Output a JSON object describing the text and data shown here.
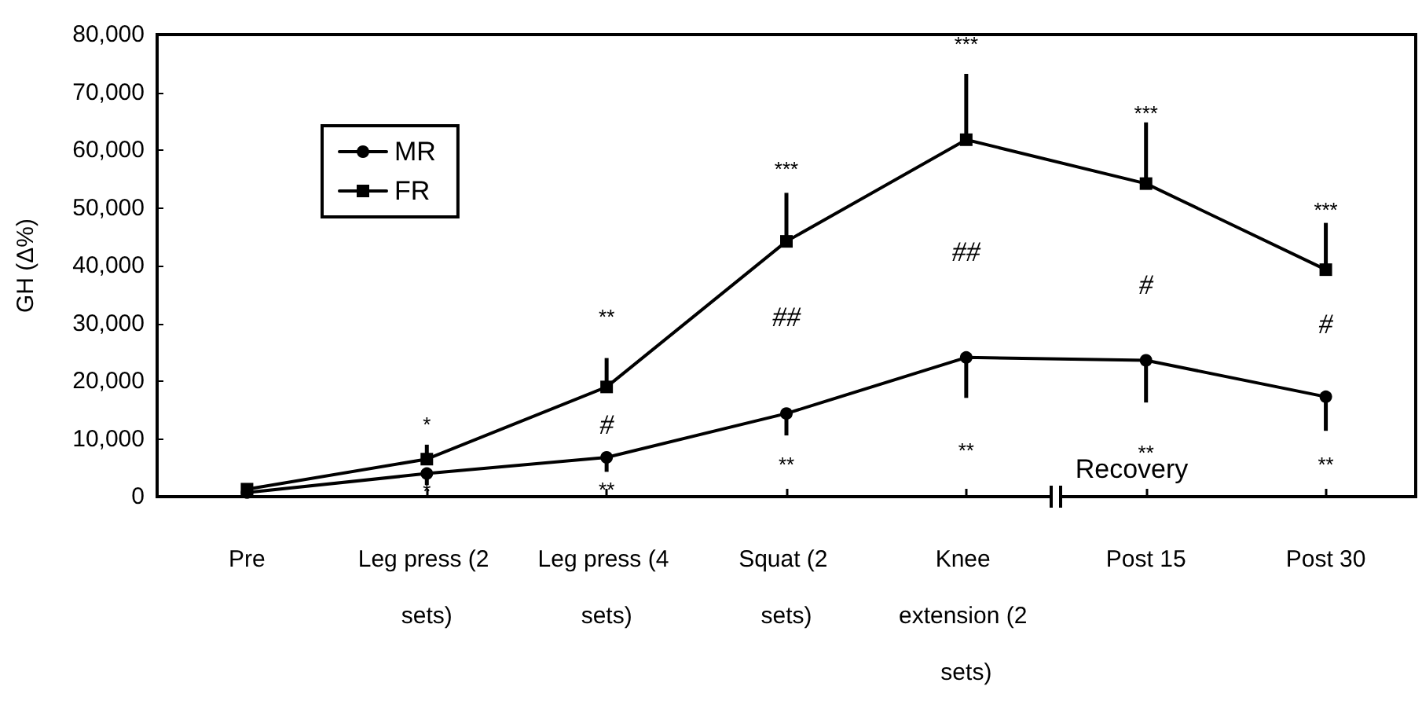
{
  "chart_data": {
    "type": "line",
    "ylabel": "GH (Δ%)",
    "categories": [
      "Pre",
      "Leg press (2 sets)",
      "Leg press (4 sets)",
      "Squat (2 sets)",
      "Knee extension (2 sets)",
      "Post 15",
      "Post 30"
    ],
    "series": [
      {
        "name": "MR",
        "color": "#000000",
        "marker": "circle",
        "values": [
          700,
          4000,
          6800,
          14400,
          24100,
          23600,
          17300
        ],
        "errors": [
          null,
          [
            2000,
            4000
          ],
          [
            4300,
            6800
          ],
          [
            10600,
            14400
          ],
          [
            17100,
            24100
          ],
          [
            16300,
            23600
          ],
          [
            11400,
            17300
          ]
        ]
      },
      {
        "name": "FR",
        "color": "#000000",
        "marker": "square",
        "values": [
          1300,
          6500,
          19000,
          44200,
          61800,
          54200,
          39300
        ],
        "errors": [
          null,
          [
            6500,
            9000
          ],
          [
            19000,
            24000
          ],
          [
            44200,
            52600
          ],
          [
            61800,
            73200
          ],
          [
            54200,
            64800
          ],
          [
            39300,
            47400
          ]
        ]
      }
    ],
    "ylim": [
      0,
      80000
    ],
    "yticks": [
      {
        "value": 0,
        "label": "0"
      },
      {
        "value": 10000,
        "label": "10,000"
      },
      {
        "value": 20000,
        "label": "20,000"
      },
      {
        "value": 30000,
        "label": "30,000"
      },
      {
        "value": 40000,
        "label": "40,000"
      },
      {
        "value": 50000,
        "label": "50,000"
      },
      {
        "value": 60000,
        "label": "60,000"
      },
      {
        "value": 70000,
        "label": "70,000"
      },
      {
        "value": 80000,
        "label": "80,000"
      }
    ],
    "grid": false,
    "legend": "top left",
    "line_style": "solid",
    "annotations": [
      "*",
      "*",
      "**",
      "#",
      "**",
      "***",
      "##",
      "**",
      "***",
      "##",
      "**",
      "***",
      "#",
      "**",
      "***",
      "#",
      "**",
      "Recovery"
    ]
  }
}
